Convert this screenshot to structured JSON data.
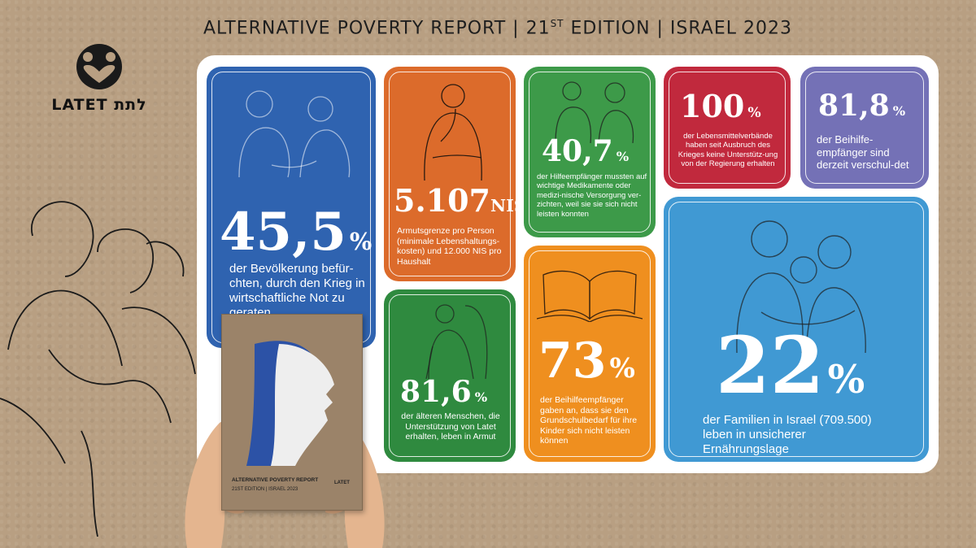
{
  "header": {
    "part1": "ALTERNATIVE POVERTY REPORT | 21",
    "sup": "ST",
    "part2": " EDITION | ISRAEL 2023"
  },
  "logo": {
    "text": "LATET לתת"
  },
  "colors": {
    "blue": "#2f63b0",
    "orange": "#dc6b2b",
    "green": "#3d9a49",
    "red": "#c1293d",
    "purple": "#7471b6",
    "sky": "#4099d3",
    "amber": "#ef8f1f",
    "dark_green": "#2f8a3f"
  },
  "cards": {
    "c1": {
      "value": "45,5",
      "unit": "%",
      "text": "der Bevölkerung befür-chten, durch den Krieg in wirtschaftliche Not zu geraten"
    },
    "c2": {
      "value": "5.107",
      "unit": "NIS",
      "text": "Armutsgrenze pro Person (minimale Lebenshaltungs-kosten) und 12.000 NIS pro Haushalt"
    },
    "c3": {
      "value": "40,7",
      "unit": "%",
      "text": "der Hilfeempfänger mussten auf wichtige Medikamente oder medizi-nische Versorgung ver-zichten, weil sie sie sich nicht leisten konnten"
    },
    "c4": {
      "value": "100",
      "unit": "%",
      "text": "der Lebensmittelverbände haben seit Ausbruch des Krieges keine Unterstütz-ung von der Regierung erhalten"
    },
    "c5": {
      "value": "81,8",
      "unit": "%",
      "text": "der Beihilfe-empfänger sind derzeit verschul-det"
    },
    "c6": {
      "value": "81,6",
      "unit": "%",
      "text": "der älteren Menschen, die Unterstützung von Latet erhalten, leben in Armut"
    },
    "c7": {
      "value": "73",
      "unit": "%",
      "text": "der Beihilfeempfänger gaben an, dass sie den Grundschulbedarf für ihre Kinder sich nicht leisten können"
    },
    "c8": {
      "value": "22",
      "unit": "%",
      "text": "der Familien in Israel (709.500) leben in unsicherer Ernährungslage"
    }
  },
  "book": {
    "title": "ALTERNATIVE POVERTY REPORT",
    "subtitle": "21ST EDITION | ISRAEL 2023",
    "logo": "LATET"
  }
}
